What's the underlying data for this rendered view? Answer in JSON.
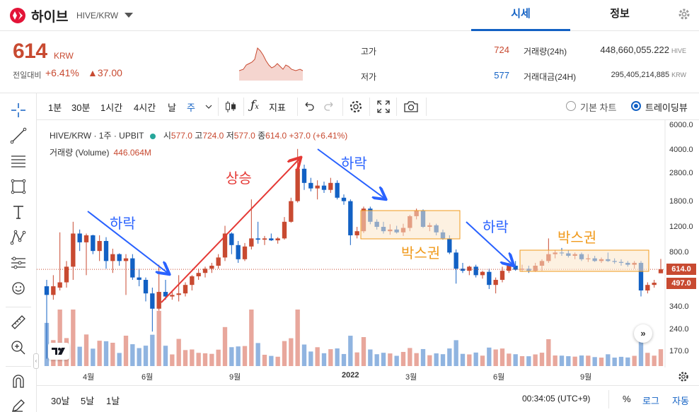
{
  "header": {
    "coin_name": "하이브",
    "pair": "HIVE/KRW",
    "tabs": [
      {
        "label": "시세",
        "active": true
      },
      {
        "label": "정보",
        "active": false
      }
    ]
  },
  "summary": {
    "price": "614",
    "unit": "KRW",
    "change_label": "전일대비",
    "change_pct": "+6.41%",
    "change_amt": "▲37.00",
    "high_label": "고가",
    "high_value": "724",
    "low_label": "저가",
    "low_value": "577",
    "vol_label": "거래량(24h)",
    "vol_value": "448,660,055.222",
    "vol_unit": "HIVE",
    "amt_label": "거래대금(24H)",
    "amt_value": "295,405,214,885",
    "amt_unit": "KRW"
  },
  "toolbar": {
    "intervals": [
      "1분",
      "30분",
      "1시간",
      "4시간",
      "날",
      "주"
    ],
    "active_interval": "주",
    "indicator_label": "지표",
    "basic_chart": "기본 차트",
    "tradingview": "트레이딩뷰"
  },
  "legend": {
    "symbol": "HIVE/KRW · 1주 · UPBIT",
    "open_lbl": "시",
    "open": "577.0",
    "high_lbl": "고",
    "high": "724.0",
    "low_lbl": "저",
    "low": "577.0",
    "close_lbl": "종",
    "close": "614.0",
    "change": "+37.0 (+6.41%)",
    "volume_label": "거래량 (Volume)",
    "volume_value": "446.064M"
  },
  "price_axis": [
    "6000.0",
    "4000.0",
    "2800.0",
    "1800.0",
    "1200.0",
    "800.0",
    "614.0",
    "497.0",
    "340.0",
    "240.0",
    "170.0"
  ],
  "time_axis": [
    "4월",
    "6월",
    "9월",
    "2022",
    "3월",
    "6월",
    "9월"
  ],
  "annotations": {
    "down1": "하락",
    "up1": "상승",
    "down2": "하락",
    "box1": "박스권",
    "down3": "하락",
    "box2": "박스권"
  },
  "colors": {
    "up": "#c84a31",
    "down": "#1261c4",
    "up_vol": "#e8a79c",
    "down_vol": "#90b4e0",
    "arrow_blue": "#2962ff",
    "arrow_red": "#e53935",
    "box": "#f09a1c"
  },
  "footer": {
    "ranges": [
      "30날",
      "5날",
      "1날"
    ],
    "time": "00:34:05 (UTC+9)",
    "percent": "%",
    "log": "로그",
    "auto": "자동"
  },
  "chart_data": {
    "type": "candlestick",
    "interval": "1주",
    "candles": [
      {
        "o": 470,
        "h": 520,
        "l": 150,
        "c": 410
      },
      {
        "o": 410,
        "h": 560,
        "l": 380,
        "c": 470
      },
      {
        "o": 460,
        "h": 1100,
        "l": 440,
        "c": 500
      },
      {
        "o": 500,
        "h": 700,
        "l": 460,
        "c": 640
      },
      {
        "o": 640,
        "h": 1300,
        "l": 520,
        "c": 1080
      },
      {
        "o": 1080,
        "h": 1150,
        "l": 820,
        "c": 940
      },
      {
        "o": 940,
        "h": 1080,
        "l": 560,
        "c": 1050
      },
      {
        "o": 1050,
        "h": 1060,
        "l": 780,
        "c": 820
      },
      {
        "o": 820,
        "h": 1050,
        "l": 700,
        "c": 960
      },
      {
        "o": 960,
        "h": 1020,
        "l": 620,
        "c": 700
      },
      {
        "o": 700,
        "h": 850,
        "l": 580,
        "c": 780
      },
      {
        "o": 780,
        "h": 790,
        "l": 650,
        "c": 700
      },
      {
        "o": 700,
        "h": 780,
        "l": 410,
        "c": 730
      },
      {
        "o": 730,
        "h": 780,
        "l": 520,
        "c": 540
      },
      {
        "o": 540,
        "h": 620,
        "l": 470,
        "c": 520
      },
      {
        "o": 520,
        "h": 540,
        "l": 370,
        "c": 420
      },
      {
        "o": 420,
        "h": 460,
        "l": 230,
        "c": 330
      },
      {
        "o": 330,
        "h": 660,
        "l": 320,
        "c": 430
      },
      {
        "o": 430,
        "h": 520,
        "l": 380,
        "c": 400
      },
      {
        "o": 400,
        "h": 440,
        "l": 380,
        "c": 410
      },
      {
        "o": 410,
        "h": 560,
        "l": 370,
        "c": 420
      },
      {
        "o": 420,
        "h": 500,
        "l": 400,
        "c": 480
      },
      {
        "o": 480,
        "h": 560,
        "l": 440,
        "c": 550
      },
      {
        "o": 550,
        "h": 620,
        "l": 520,
        "c": 580
      },
      {
        "o": 580,
        "h": 640,
        "l": 540,
        "c": 620
      },
      {
        "o": 620,
        "h": 680,
        "l": 580,
        "c": 650
      },
      {
        "o": 650,
        "h": 780,
        "l": 620,
        "c": 740
      },
      {
        "o": 740,
        "h": 1220,
        "l": 700,
        "c": 1080
      },
      {
        "o": 1080,
        "h": 1100,
        "l": 780,
        "c": 900
      },
      {
        "o": 900,
        "h": 960,
        "l": 680,
        "c": 720
      },
      {
        "o": 720,
        "h": 930,
        "l": 700,
        "c": 880
      },
      {
        "o": 880,
        "h": 1850,
        "l": 840,
        "c": 1000
      },
      {
        "o": 1000,
        "h": 1300,
        "l": 920,
        "c": 980
      },
      {
        "o": 980,
        "h": 1040,
        "l": 900,
        "c": 1000
      },
      {
        "o": 1000,
        "h": 1080,
        "l": 960,
        "c": 970
      },
      {
        "o": 970,
        "h": 1020,
        "l": 920,
        "c": 1000
      },
      {
        "o": 1000,
        "h": 1400,
        "l": 980,
        "c": 1300
      },
      {
        "o": 1300,
        "h": 1900,
        "l": 1280,
        "c": 1800
      },
      {
        "o": 1800,
        "h": 4100,
        "l": 1760,
        "c": 3000
      },
      {
        "o": 3000,
        "h": 3200,
        "l": 2150,
        "c": 2400
      },
      {
        "o": 2400,
        "h": 2600,
        "l": 2100,
        "c": 2200
      },
      {
        "o": 2200,
        "h": 2500,
        "l": 1850,
        "c": 2300
      },
      {
        "o": 2300,
        "h": 2450,
        "l": 2050,
        "c": 2150
      },
      {
        "o": 2150,
        "h": 2600,
        "l": 2050,
        "c": 2400
      },
      {
        "o": 2400,
        "h": 2500,
        "l": 1850,
        "c": 1900
      },
      {
        "o": 1900,
        "h": 2000,
        "l": 1700,
        "c": 1800
      },
      {
        "o": 1800,
        "h": 1850,
        "l": 900,
        "c": 1050
      },
      {
        "o": 1050,
        "h": 1200,
        "l": 1000,
        "c": 1120
      },
      {
        "o": 1120,
        "h": 1650,
        "l": 1090,
        "c": 1600
      },
      {
        "o": 1600,
        "h": 1650,
        "l": 1250,
        "c": 1300
      },
      {
        "o": 1300,
        "h": 1350,
        "l": 1150,
        "c": 1200
      },
      {
        "o": 1200,
        "h": 1300,
        "l": 1080,
        "c": 1120
      },
      {
        "o": 1120,
        "h": 1250,
        "l": 1060,
        "c": 1150
      },
      {
        "o": 1150,
        "h": 1220,
        "l": 1080,
        "c": 1100
      },
      {
        "o": 1100,
        "h": 1260,
        "l": 1040,
        "c": 1180
      },
      {
        "o": 1180,
        "h": 1450,
        "l": 1120,
        "c": 1420
      },
      {
        "o": 1420,
        "h": 1600,
        "l": 1350,
        "c": 1550
      },
      {
        "o": 1550,
        "h": 1580,
        "l": 1180,
        "c": 1200
      },
      {
        "o": 1200,
        "h": 1280,
        "l": 1120,
        "c": 1230
      },
      {
        "o": 1230,
        "h": 1260,
        "l": 1050,
        "c": 1100
      },
      {
        "o": 1100,
        "h": 1150,
        "l": 980,
        "c": 1000
      },
      {
        "o": 1000,
        "h": 1050,
        "l": 780,
        "c": 800
      },
      {
        "o": 800,
        "h": 840,
        "l": 490,
        "c": 620
      },
      {
        "o": 620,
        "h": 680,
        "l": 580,
        "c": 600
      },
      {
        "o": 600,
        "h": 650,
        "l": 560,
        "c": 640
      },
      {
        "o": 640,
        "h": 660,
        "l": 540,
        "c": 560
      },
      {
        "o": 560,
        "h": 600,
        "l": 530,
        "c": 590
      },
      {
        "o": 590,
        "h": 620,
        "l": 450,
        "c": 480
      },
      {
        "o": 480,
        "h": 540,
        "l": 420,
        "c": 520
      },
      {
        "o": 520,
        "h": 640,
        "l": 500,
        "c": 600
      },
      {
        "o": 600,
        "h": 680,
        "l": 580,
        "c": 650
      },
      {
        "o": 650,
        "h": 700,
        "l": 600,
        "c": 610
      },
      {
        "o": 610,
        "h": 660,
        "l": 590,
        "c": 620
      },
      {
        "o": 620,
        "h": 650,
        "l": 580,
        "c": 600
      },
      {
        "o": 600,
        "h": 680,
        "l": 590,
        "c": 650
      },
      {
        "o": 650,
        "h": 720,
        "l": 600,
        "c": 700
      },
      {
        "o": 700,
        "h": 1000,
        "l": 680,
        "c": 780
      },
      {
        "o": 780,
        "h": 830,
        "l": 730,
        "c": 800
      },
      {
        "o": 800,
        "h": 860,
        "l": 760,
        "c": 790
      },
      {
        "o": 790,
        "h": 830,
        "l": 740,
        "c": 760
      },
      {
        "o": 760,
        "h": 800,
        "l": 720,
        "c": 780
      },
      {
        "o": 780,
        "h": 800,
        "l": 700,
        "c": 720
      },
      {
        "o": 720,
        "h": 780,
        "l": 690,
        "c": 730
      },
      {
        "o": 730,
        "h": 760,
        "l": 690,
        "c": 700
      },
      {
        "o": 700,
        "h": 740,
        "l": 680,
        "c": 720
      },
      {
        "o": 720,
        "h": 800,
        "l": 690,
        "c": 700
      },
      {
        "o": 700,
        "h": 730,
        "l": 670,
        "c": 690
      },
      {
        "o": 690,
        "h": 720,
        "l": 650,
        "c": 680
      },
      {
        "o": 680,
        "h": 700,
        "l": 640,
        "c": 660
      },
      {
        "o": 660,
        "h": 700,
        "l": 620,
        "c": 680
      },
      {
        "o": 680,
        "h": 700,
        "l": 400,
        "c": 440
      },
      {
        "o": 440,
        "h": 500,
        "l": 420,
        "c": 480
      },
      {
        "o": 480,
        "h": 520,
        "l": 460,
        "c": 497
      },
      {
        "o": 577,
        "h": 724,
        "l": 577,
        "c": 614
      }
    ]
  }
}
